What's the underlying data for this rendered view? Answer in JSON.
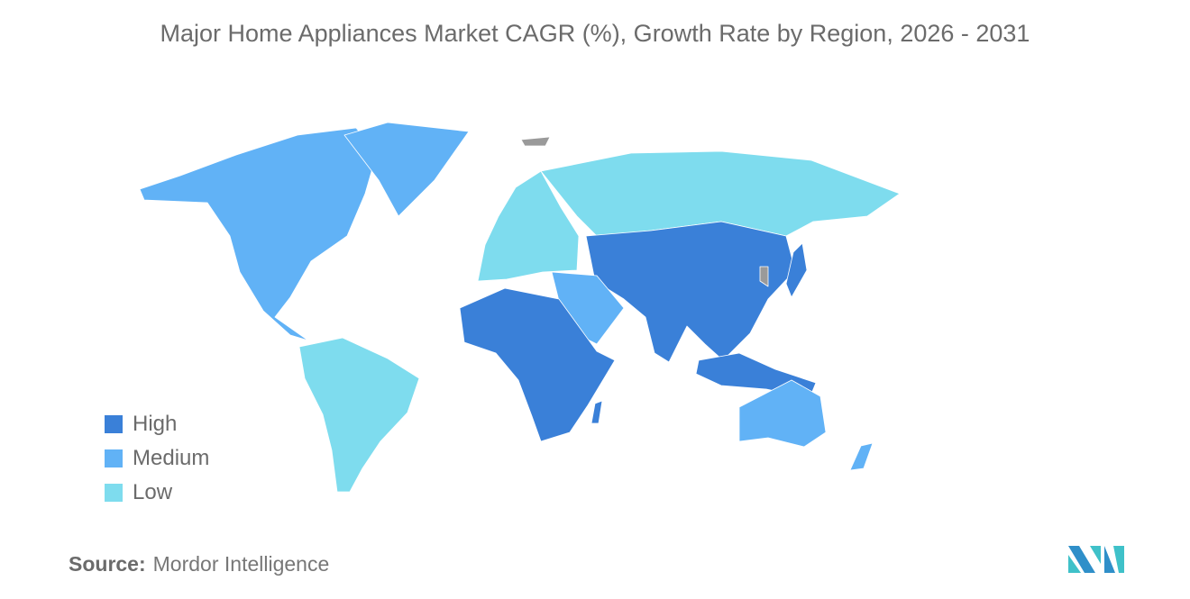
{
  "title": "Major Home Appliances Market CAGR (%), Growth Rate by Region, 2026 - 2031",
  "legend": [
    {
      "label": "High",
      "color": "#3a80d8"
    },
    {
      "label": "Medium",
      "color": "#61b2f6"
    },
    {
      "label": "Low",
      "color": "#7edcee"
    }
  ],
  "no_data_color": "#9a9a9a",
  "source": {
    "label": "Source:",
    "value": "Mordor Intelligence"
  }
}
